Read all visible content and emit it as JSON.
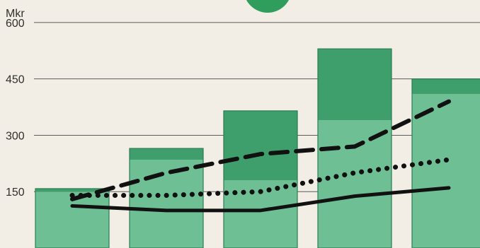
{
  "chart_data": {
    "type": "bar",
    "ylabel": "Mkr",
    "yticks": [
      150,
      300,
      450,
      600
    ],
    "ylim": [
      0,
      660
    ],
    "grid": true,
    "categories": [
      "",
      "",
      "",
      "",
      ""
    ],
    "bars": {
      "light_values": [
        150,
        235,
        180,
        340,
        410
      ],
      "dark_values": [
        8,
        30,
        185,
        190,
        40
      ],
      "totals": [
        158,
        265,
        365,
        530,
        450
      ]
    },
    "series": [
      {
        "style": "solid",
        "x": [
          0,
          1,
          2,
          3,
          4
        ],
        "values": [
          112,
          100,
          100,
          138,
          160
        ]
      },
      {
        "style": "dotted",
        "x": [
          0,
          1,
          2,
          3,
          4
        ],
        "values": [
          140,
          140,
          150,
          200,
          235
        ]
      },
      {
        "style": "dashed",
        "x": [
          0,
          1,
          2,
          3,
          4
        ],
        "values": [
          130,
          200,
          250,
          270,
          390
        ]
      }
    ],
    "colors": {
      "bar_light": "#6fbf95",
      "bar_dark": "#3e9f6c",
      "bar_stroke": "#2b7d53",
      "background": "#f3eee5",
      "grid": "#5c5c5c",
      "line": "#111111",
      "accent_circle": "#2f9d5c"
    }
  }
}
